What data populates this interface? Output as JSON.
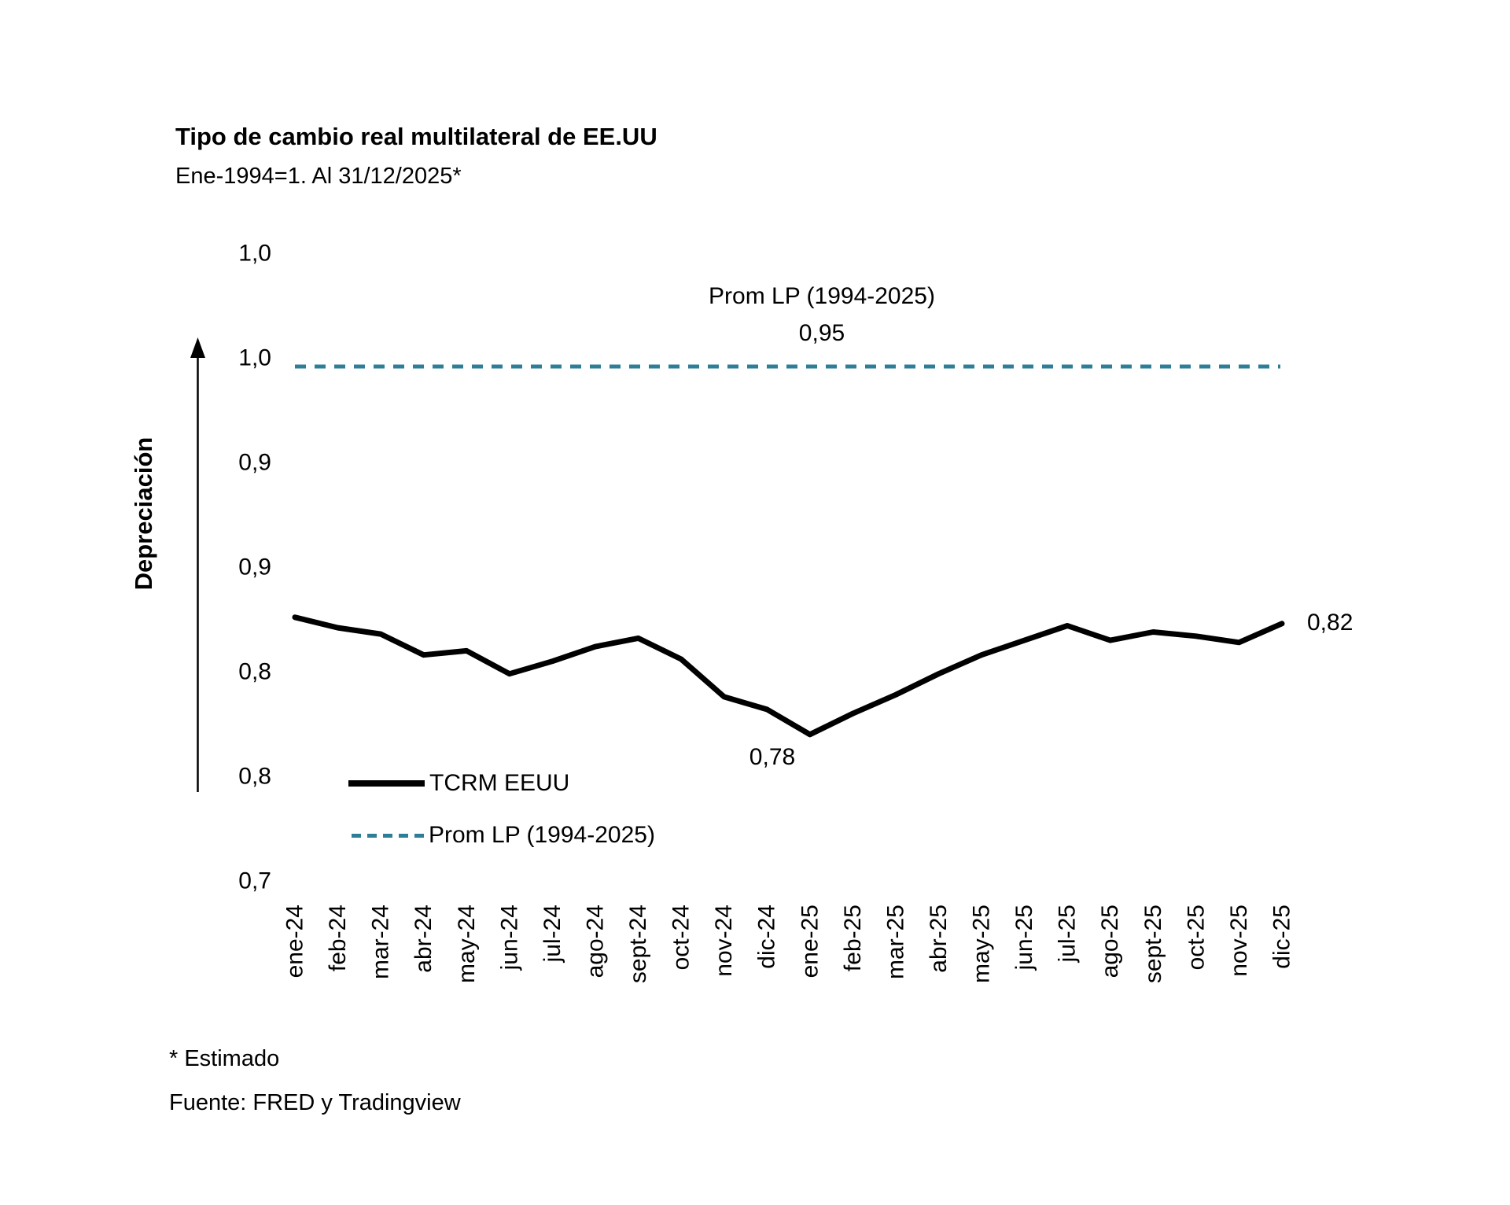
{
  "footnotes": [
    "* Estimado",
    "Fuente: FRED y Tradingview"
  ],
  "chart_data": {
    "type": "line",
    "title": "Tipo de cambio real multilateral de EE.UU",
    "subtitle": "Ene-1994=1. Al 31/12/2025*",
    "ylabel": "Depreciación",
    "xlabel": "",
    "ylim": [
      0.7,
      1.0
    ],
    "grid": false,
    "legend_position": "inside-bottom-left",
    "y_ticks": [
      {
        "value": 1.0,
        "label": "1,0"
      },
      {
        "value": 0.95,
        "label": "1,0"
      },
      {
        "value": 0.9,
        "label": "0,9"
      },
      {
        "value": 0.85,
        "label": "0,9"
      },
      {
        "value": 0.8,
        "label": "0,8"
      },
      {
        "value": 0.75,
        "label": "0,8"
      },
      {
        "value": 0.7,
        "label": "0,7"
      }
    ],
    "categories": [
      "ene-24",
      "feb-24",
      "mar-24",
      "abr-24",
      "may-24",
      "jun-24",
      "jul-24",
      "ago-24",
      "sept-24",
      "oct-24",
      "nov-24",
      "dic-24",
      "ene-25",
      "feb-25",
      "mar-25",
      "abr-25",
      "may-25",
      "jun-25",
      "jul-25",
      "ago-25",
      "sept-25",
      "oct-25",
      "nov-25",
      "dic-25"
    ],
    "series": [
      {
        "name": "TCRM EEUU",
        "color": "#000000",
        "line_style": "solid",
        "values": [
          0.826,
          0.821,
          0.818,
          0.808,
          0.81,
          0.799,
          0.805,
          0.812,
          0.816,
          0.806,
          0.788,
          0.782,
          0.77,
          0.78,
          0.789,
          0.799,
          0.808,
          0.815,
          0.822,
          0.815,
          0.819,
          0.817,
          0.814,
          0.823
        ]
      }
    ],
    "average_line": {
      "name": "Prom LP (1994-2025)",
      "value": 0.95,
      "value_label": "0,95",
      "color": "#2E7E97",
      "line_style": "dashed"
    },
    "data_labels": [
      {
        "category": "dic-24",
        "index": 11,
        "text": "0,78"
      },
      {
        "category": "dic-25",
        "index": 23,
        "text": "0,82"
      }
    ]
  }
}
